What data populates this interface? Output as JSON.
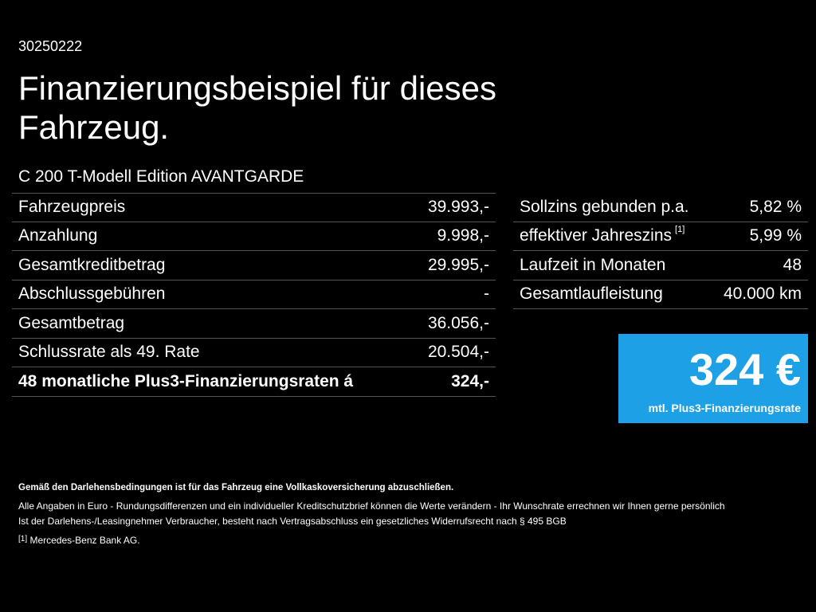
{
  "code": "30250222",
  "title": "Finanzierungsbeispiel für dieses Fahrzeug.",
  "model": "C 200 T-Modell Edition AVANTGARDE",
  "left_rows": [
    {
      "label": "Fahrzeugpreis",
      "value": "39.993,-"
    },
    {
      "label": "Anzahlung",
      "value": "9.998,-"
    },
    {
      "label": "Gesamtkreditbetrag",
      "value": "29.995,-"
    },
    {
      "label": "Abschlussgebühren",
      "value": "-"
    },
    {
      "label": "Gesamtbetrag",
      "value": "36.056,-"
    },
    {
      "label": "Schlussrate als 49. Rate",
      "value": "20.504,-"
    },
    {
      "label": "48 monatliche Plus3-Finanzierungsraten á",
      "value": "324,-"
    }
  ],
  "right_rows": [
    {
      "label": "Sollzins gebunden p.a.",
      "value": "5,82 %"
    },
    {
      "label": "effektiver Jahreszins",
      "sup": "[1]",
      "value": "5,99 %"
    },
    {
      "label": "Laufzeit in Monaten",
      "value": "48"
    },
    {
      "label": "Gesamtlaufleistung",
      "value": "40.000 km"
    }
  ],
  "rate": {
    "amount": "324 €",
    "caption": "mtl. Plus3-Finanzierungsrate",
    "color": "#1ea0e6"
  },
  "footnotes": {
    "bold": "Gemäß den Darlehensbedingungen ist für das Fahrzeug eine Vollkaskoversicherung abzuschließen.",
    "line1": "Alle Angaben in Euro - Rundungsdifferenzen und ein individueller Kreditschutzbrief können die Werte verändern - Ihr Wunschrate errechnen wir Ihnen gerne persönlich",
    "line2": "Ist der Darlehens-/Leasingnehmer Verbraucher, besteht nach Vertragsabschluss ein gesetzliches Widerrufsrecht nach § 495 BGB",
    "ref_mark": "[1]",
    "ref_text": "Mercedes-Benz Bank AG."
  }
}
